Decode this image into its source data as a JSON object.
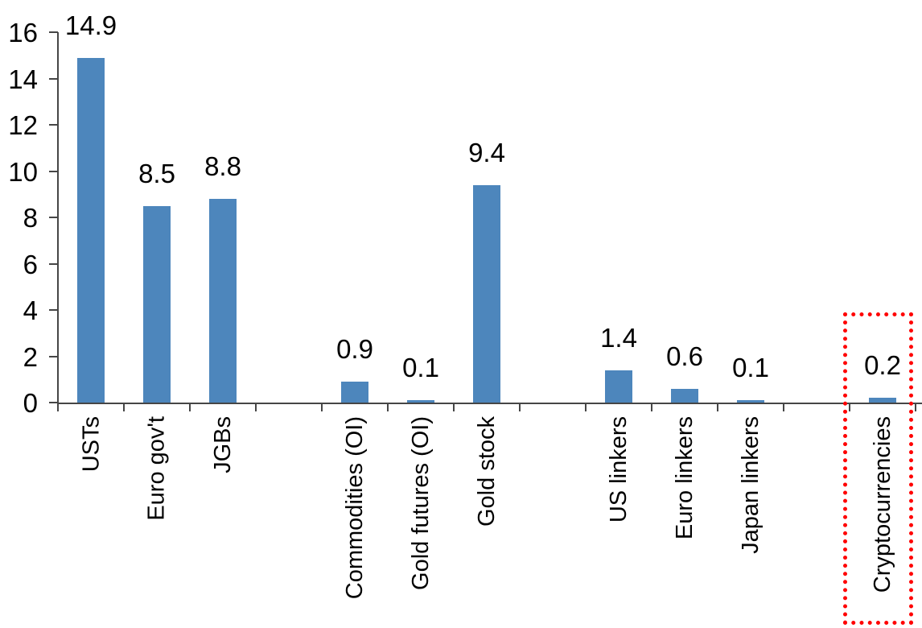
{
  "chart_data": {
    "type": "bar",
    "title": "",
    "xlabel": "",
    "ylabel": "",
    "categories": [
      "USTs",
      "Euro gov't",
      "JGBs",
      "Commodities (OI)",
      "Gold futures (OI)",
      "Gold stock",
      "US linkers",
      "Euro linkers",
      "Japan linkers",
      "Cryptocurrencies"
    ],
    "values": [
      14.9,
      8.5,
      8.8,
      0.9,
      0.1,
      9.4,
      1.4,
      0.6,
      0.1,
      0.2
    ],
    "data_labels": [
      "14.9",
      "8.5",
      "8.8",
      "0.9",
      "0.1",
      "9.4",
      "1.4",
      "0.6",
      "0.1",
      "0.2"
    ],
    "slot_layout": [
      "USTs",
      "Euro gov't",
      "JGBs",
      null,
      "Commodities (OI)",
      "Gold futures (OI)",
      "Gold stock",
      null,
      "US linkers",
      "Euro linkers",
      "Japan linkers",
      null,
      "Cryptocurrencies"
    ],
    "ylim": [
      0,
      16
    ],
    "yticks": [
      0,
      2,
      4,
      6,
      8,
      10,
      12,
      14,
      16
    ],
    "grid": false,
    "legend": "none",
    "data_labels_visible": true,
    "colors": {
      "bar": "#4D86BC",
      "axis": "#464646",
      "text": "#000000",
      "highlight_box": "#FF0000"
    },
    "highlight": {
      "category": "Cryptocurrencies",
      "style": "red-dotted-box"
    }
  }
}
